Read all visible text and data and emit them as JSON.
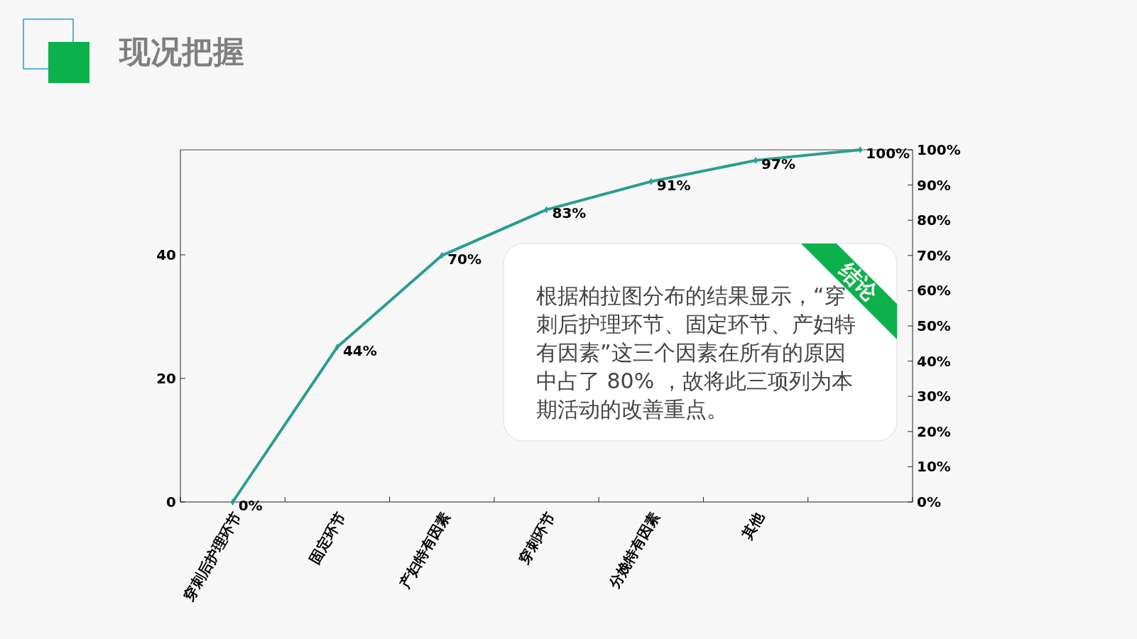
{
  "chart_data": {
    "type": "line",
    "title": "现况把握",
    "categories": [
      "穿刺后护理环节",
      "固定环节",
      "产妇特有因素",
      "穿刺环节",
      "分娩特有因素",
      "其他",
      null
    ],
    "series": [
      {
        "color": "#2a9d8f",
        "axis": "y2",
        "values": [
          0,
          44,
          70,
          83,
          91,
          97,
          100
        ],
        "value_labels": [
          "0%",
          "44%",
          "70%",
          "83%",
          "91%",
          "97%",
          "100%"
        ]
      }
    ],
    "ylim": [
      0,
      57
    ],
    "yticks": [
      0,
      20,
      40
    ],
    "y2lim": [
      0,
      100
    ],
    "y2ticks": [
      {
        "value": 0,
        "label": "0%"
      },
      {
        "value": 10,
        "label": "10%"
      },
      {
        "value": 20,
        "label": "20%"
      },
      {
        "value": 30,
        "label": "30%"
      },
      {
        "value": 40,
        "label": "40%"
      },
      {
        "value": 50,
        "label": "50%"
      },
      {
        "value": 60,
        "label": "60%"
      },
      {
        "value": 70,
        "label": "70%"
      },
      {
        "value": 80,
        "label": "80%"
      },
      {
        "value": 90,
        "label": "90%"
      },
      {
        "value": 100,
        "label": "100%"
      }
    ],
    "grid": false,
    "marker": "diamond",
    "line_style": "solid",
    "annotations": [
      "结论",
      "根据柏拉图分布的结果显示，“穿刺后护理环节、固定环节、产妇特有因素”这三个因素在所有的原因中占了 80% ，故将此三项列为本期活动的改善重点。"
    ]
  }
}
